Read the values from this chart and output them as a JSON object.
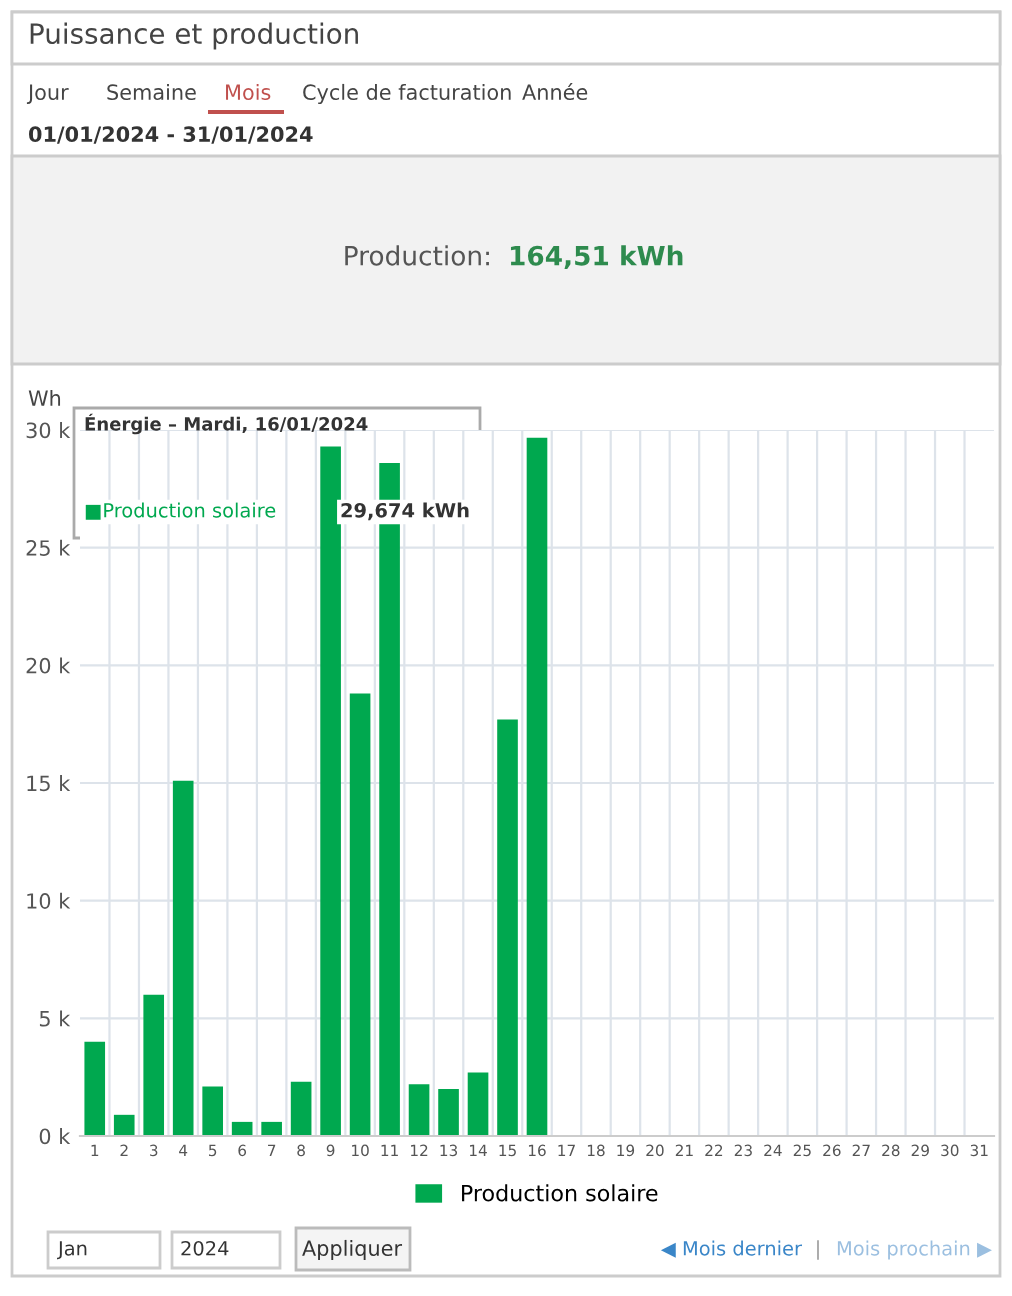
{
  "chart_data": {
    "type": "bar",
    "title": "Puissance et production",
    "ylabel": "Wh",
    "categories": [
      "1",
      "2",
      "3",
      "4",
      "5",
      "6",
      "7",
      "8",
      "9",
      "10",
      "11",
      "12",
      "13",
      "14",
      "15",
      "16",
      "17",
      "18",
      "19",
      "20",
      "21",
      "22",
      "23",
      "24",
      "25",
      "26",
      "27",
      "28",
      "29",
      "30",
      "31"
    ],
    "series": [
      {
        "name": "Production solaire",
        "color": "#00a84f",
        "values": [
          4000,
          900,
          6000,
          15100,
          2100,
          600,
          600,
          2300,
          29300,
          18800,
          28600,
          2200,
          2000,
          2700,
          17700,
          29674,
          null,
          null,
          null,
          null,
          null,
          null,
          null,
          null,
          null,
          null,
          null,
          null,
          null,
          null,
          null
        ]
      }
    ],
    "ylim": [
      0,
      30000
    ],
    "yticks": [
      {
        "value": 0,
        "label": "0 k"
      },
      {
        "value": 5000,
        "label": "5 k"
      },
      {
        "value": 10000,
        "label": "10 k"
      },
      {
        "value": 15000,
        "label": "15 k"
      },
      {
        "value": 20000,
        "label": "20 k"
      },
      {
        "value": 25000,
        "label": "25 k"
      },
      {
        "value": 30000,
        "label": "30 k"
      }
    ],
    "grid": true,
    "legend": "bottom",
    "annotations": [
      "29,674 kWh",
      "Énergie – Mardi, 16/01/2024",
      "■Production solaire",
      "Jour",
      "Semaine",
      "Mois",
      "Cycle de facturation",
      "Année",
      "01/01/2024 - 31/01/2024",
      "Production:",
      "164,51 kWh",
      "Jan",
      "2024",
      "Appliquer",
      "◀ Mois dernier",
      "|",
      "Mois prochain ▶"
    ]
  }
}
